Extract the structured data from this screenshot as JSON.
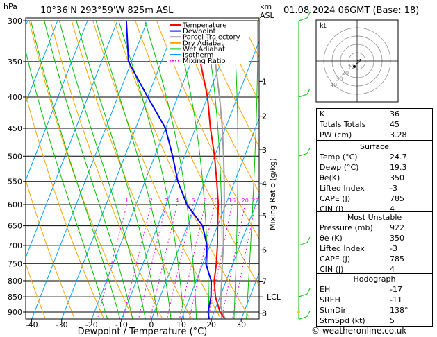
{
  "header": {
    "hpa": "hPa",
    "location": "10°36'N  293°59'W  825m  ASL",
    "km": "km",
    "asl": "ASL",
    "datetime": "01.08.2024  06GMT  (Base: 18)"
  },
  "axes": {
    "xlabel": "Dewpoint / Temperature (°C)",
    "ylabel": "Mixing Ratio (g/kg)",
    "pressure_ticks": [
      "300",
      "350",
      "400",
      "450",
      "500",
      "550",
      "600",
      "650",
      "700",
      "750",
      "800",
      "850",
      "900"
    ],
    "temp_ticks": [
      "-40",
      "-30",
      "-20",
      "-10",
      "0",
      "10",
      "20",
      "30"
    ],
    "km_ticks": [
      "8",
      "7",
      "6",
      "5",
      "4",
      "3",
      "2",
      "1"
    ],
    "lcl_label": "LCL",
    "mixing_ratio_labels": [
      "1",
      "2",
      "3",
      "4",
      "6",
      "8",
      "10",
      "15",
      "20",
      "25"
    ]
  },
  "legend": [
    "Temperature",
    "Dewpoint",
    "Parcel Trajectory",
    "Dry Adiabat",
    "Wet Adiabat",
    "Isotherm",
    "Mixing Ratio"
  ],
  "hodograph": {
    "label": "kt",
    "ring_labels": [
      "10",
      "20",
      "30",
      "40"
    ]
  },
  "indices": [
    {
      "k": "K",
      "v": "36"
    },
    {
      "k": "Totals Totals",
      "v": "45"
    },
    {
      "k": "PW (cm)",
      "v": "3.28"
    }
  ],
  "surface": {
    "title": "Surface",
    "rows": [
      {
        "k": "Temp (°C)",
        "v": "24.7"
      },
      {
        "k": "Dewp (°C)",
        "v": "19.3"
      },
      {
        "k": "θe(K)",
        "v": "350"
      },
      {
        "k": "Lifted Index",
        "v": "-3"
      },
      {
        "k": "CAPE (J)",
        "v": "785"
      },
      {
        "k": "CIN (J)",
        "v": "4"
      }
    ]
  },
  "most_unstable": {
    "title": "Most Unstable",
    "rows": [
      {
        "k": "Pressure (mb)",
        "v": "922"
      },
      {
        "k": "θe (K)",
        "v": "350"
      },
      {
        "k": "Lifted Index",
        "v": "-3"
      },
      {
        "k": "CAPE (J)",
        "v": "785"
      },
      {
        "k": "CIN (J)",
        "v": "4"
      }
    ]
  },
  "hodograph_table": {
    "title": "Hodograph",
    "rows": [
      {
        "k": "EH",
        "v": "-17"
      },
      {
        "k": "SREH",
        "v": "-11"
      },
      {
        "k": "StmDir",
        "v": "138°"
      },
      {
        "k": "StmSpd (kt)",
        "v": "5"
      }
    ]
  },
  "footer": "© weatheronline.co.uk",
  "colors": {
    "temperature": "#ff0000",
    "dewpoint": "#0000ff",
    "parcel": "#a0a0a0",
    "dry_adiabat": "#ffa500",
    "wet_adiabat": "#00c000",
    "isotherm": "#00a0ff",
    "mixing_ratio": "#ff00ff"
  },
  "chart_data": {
    "type": "line",
    "title": "",
    "xlabel": "Dewpoint / Temperature (°C)",
    "ylabel": "Mixing Ratio (g/kg)",
    "xlim": [
      -42,
      36
    ],
    "ylim_hpa": [
      300,
      925
    ],
    "skew_deg_per_log_p_decade": 79,
    "series": [
      {
        "name": "Temperature",
        "points": [
          [
            925,
            24.7
          ],
          [
            900,
            22
          ],
          [
            850,
            18.5
          ],
          [
            800,
            16
          ],
          [
            750,
            14.5
          ],
          [
            700,
            12.5
          ],
          [
            650,
            10
          ],
          [
            600,
            7.5
          ],
          [
            550,
            4
          ],
          [
            500,
            0
          ],
          [
            450,
            -5
          ],
          [
            400,
            -10
          ],
          [
            350,
            -17
          ],
          [
            300,
            -26
          ]
        ]
      },
      {
        "name": "Dewpoint",
        "points": [
          [
            925,
            19.3
          ],
          [
            900,
            18
          ],
          [
            850,
            17
          ],
          [
            800,
            15
          ],
          [
            750,
            11
          ],
          [
            700,
            9
          ],
          [
            650,
            5
          ],
          [
            600,
            -3
          ],
          [
            550,
            -9
          ],
          [
            500,
            -14
          ],
          [
            450,
            -20
          ],
          [
            400,
            -30
          ],
          [
            350,
            -41
          ],
          [
            300,
            -47
          ]
        ]
      },
      {
        "name": "Parcel Trajectory",
        "points": [
          [
            925,
            24.7
          ],
          [
            880,
            21.3
          ],
          [
            850,
            20.3
          ],
          [
            800,
            18.5
          ],
          [
            750,
            16.5
          ],
          [
            700,
            14.5
          ],
          [
            650,
            12
          ],
          [
            600,
            9.5
          ],
          [
            550,
            6.5
          ],
          [
            500,
            3
          ],
          [
            450,
            -1
          ],
          [
            400,
            -6
          ],
          [
            350,
            -12
          ],
          [
            300,
            -20
          ]
        ]
      }
    ],
    "lcl_hpa": 850,
    "km_levels": [
      [
        904,
        1
      ],
      [
        801,
        2
      ],
      [
        712,
        3
      ],
      [
        626,
        4
      ],
      [
        555,
        5
      ],
      [
        488,
        6
      ],
      [
        430,
        7
      ],
      [
        377,
        8
      ]
    ],
    "mixing_ratio_values": [
      1,
      2,
      3,
      4,
      6,
      8,
      10,
      15,
      20,
      25
    ],
    "hodograph_points_kt": [
      [
        0,
        0
      ],
      [
        2,
        1
      ],
      [
        4,
        2
      ],
      [
        3,
        -1
      ],
      [
        -2,
        -4
      ]
    ],
    "wind_barb_levels_hpa": [
      925,
      850,
      700,
      500,
      400,
      300
    ]
  }
}
